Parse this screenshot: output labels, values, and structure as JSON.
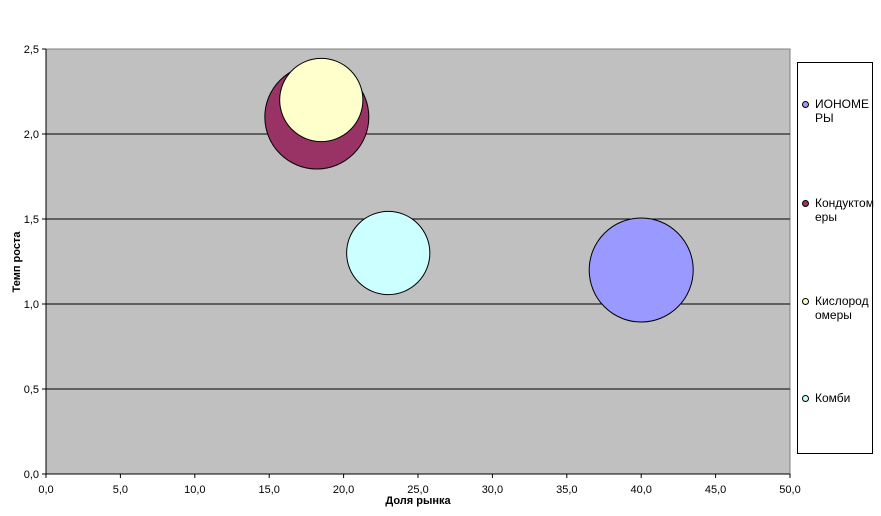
{
  "chart_data": {
    "type": "bubble",
    "xlabel": "Доля рынка",
    "ylabel": "Темп роста",
    "xlim": [
      0,
      50
    ],
    "ylim": [
      0,
      2.5
    ],
    "x_ticks": [
      "0,0",
      "5,0",
      "10,0",
      "15,0",
      "20,0",
      "25,0",
      "30,0",
      "35,0",
      "40,0",
      "45,0",
      "50,0"
    ],
    "y_ticks": [
      "0,0",
      "0,5",
      "1,0",
      "1,5",
      "2,0",
      "2,5"
    ],
    "grid": "horizontal",
    "legend_position": "right",
    "plot_background": "#c0c0c0",
    "series": [
      {
        "name": "ИОНОМЕРЫ",
        "x": 40.0,
        "y": 1.2,
        "size": 1.0,
        "color": "#9999ff"
      },
      {
        "name": "Кондуктомеры",
        "x": 18.2,
        "y": 2.1,
        "size": 1.0,
        "color": "#993366"
      },
      {
        "name": "Кислородомеры",
        "x": 18.5,
        "y": 2.2,
        "size": 0.64,
        "color": "#ffffcc"
      },
      {
        "name": "Комби",
        "x": 23.0,
        "y": 1.3,
        "size": 0.64,
        "color": "#ccffff"
      }
    ]
  }
}
